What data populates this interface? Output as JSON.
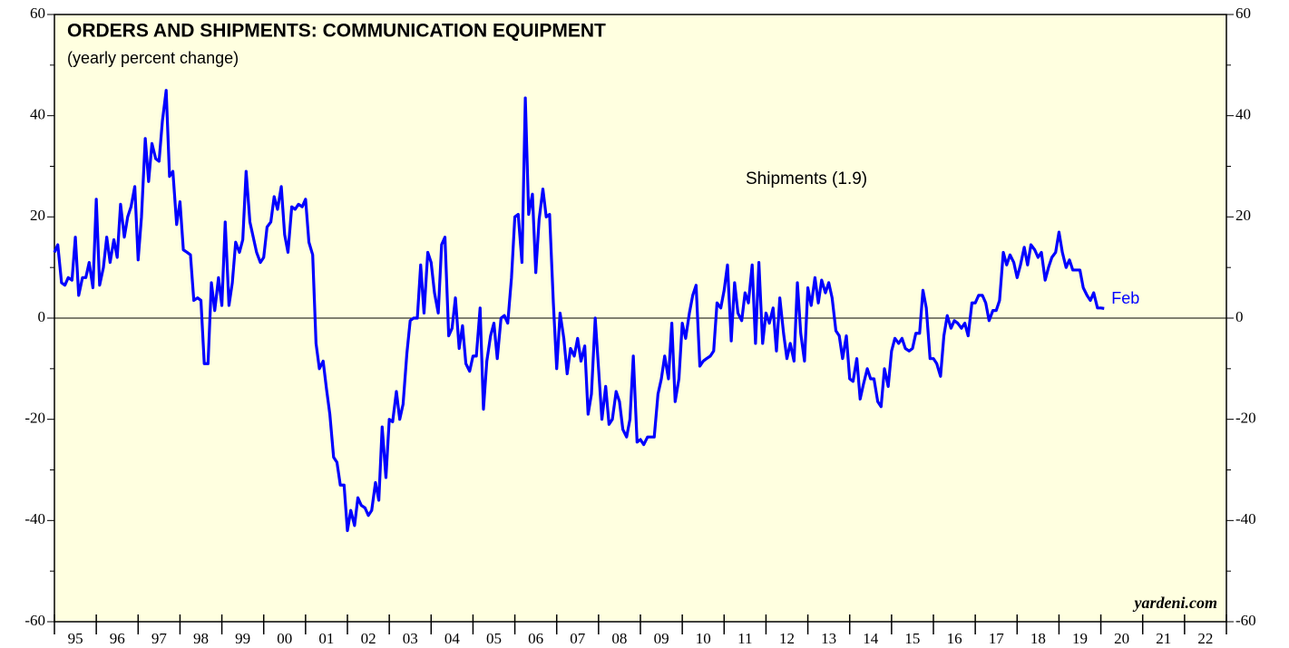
{
  "chart_data": {
    "type": "line",
    "title": "ORDERS AND SHIPMENTS: COMMUNICATION EQUIPMENT",
    "subtitle": "(yearly percent change)",
    "series_label": "Shipments (1.9)",
    "end_label": "Feb",
    "source": "yardeni.com",
    "color": "#0000ff",
    "background": "#ffffe0",
    "xlim": [
      1995,
      2023
    ],
    "xticks": [
      1995,
      1996,
      1997,
      1998,
      1999,
      2000,
      2001,
      2002,
      2003,
      2004,
      2005,
      2006,
      2007,
      2008,
      2009,
      2010,
      2011,
      2012,
      2013,
      2014,
      2015,
      2016,
      2017,
      2018,
      2019,
      2020,
      2021,
      2022,
      2023
    ],
    "year_labels": [
      "95",
      "96",
      "97",
      "98",
      "99",
      "00",
      "01",
      "02",
      "03",
      "04",
      "05",
      "06",
      "07",
      "08",
      "09",
      "10",
      "11",
      "12",
      "13",
      "14",
      "15",
      "16",
      "17",
      "18",
      "19",
      "20",
      "21",
      "22"
    ],
    "ylim": [
      -60,
      60
    ],
    "yticks": [
      -60,
      -40,
      -20,
      0,
      20,
      40,
      60
    ],
    "x": [
      1995.0,
      1995.08,
      1995.17,
      1995.25,
      1995.33,
      1995.42,
      1995.5,
      1995.58,
      1995.67,
      1995.75,
      1995.83,
      1995.92,
      1996.0,
      1996.08,
      1996.17,
      1996.25,
      1996.33,
      1996.42,
      1996.5,
      1996.58,
      1996.67,
      1996.75,
      1996.83,
      1996.92,
      1997.0,
      1997.08,
      1997.17,
      1997.25,
      1997.33,
      1997.42,
      1997.5,
      1997.58,
      1997.67,
      1997.75,
      1997.83,
      1997.92,
      1998.0,
      1998.08,
      1998.17,
      1998.25,
      1998.33,
      1998.42,
      1998.5,
      1998.58,
      1998.67,
      1998.75,
      1998.83,
      1998.92,
      1999.0,
      1999.08,
      1999.17,
      1999.25,
      1999.33,
      1999.42,
      1999.5,
      1999.58,
      1999.67,
      1999.75,
      1999.83,
      1999.92,
      2000.0,
      2000.08,
      2000.17,
      2000.25,
      2000.33,
      2000.42,
      2000.5,
      2000.58,
      2000.67,
      2000.75,
      2000.83,
      2000.92,
      2001.0,
      2001.08,
      2001.17,
      2001.25,
      2001.33,
      2001.42,
      2001.5,
      2001.58,
      2001.67,
      2001.75,
      2001.83,
      2001.92,
      2002.0,
      2002.08,
      2002.17,
      2002.25,
      2002.33,
      2002.42,
      2002.5,
      2002.58,
      2002.67,
      2002.75,
      2002.83,
      2002.92,
      2003.0,
      2003.08,
      2003.17,
      2003.25,
      2003.33,
      2003.42,
      2003.5,
      2003.58,
      2003.67,
      2003.75,
      2003.83,
      2003.92,
      2004.0,
      2004.08,
      2004.17,
      2004.25,
      2004.33,
      2004.42,
      2004.5,
      2004.58,
      2004.67,
      2004.75,
      2004.83,
      2004.92,
      2005.0,
      2005.08,
      2005.17,
      2005.25,
      2005.33,
      2005.42,
      2005.5,
      2005.58,
      2005.67,
      2005.75,
      2005.83,
      2005.92,
      2006.0,
      2006.08,
      2006.17,
      2006.25,
      2006.33,
      2006.42,
      2006.5,
      2006.58,
      2006.67,
      2006.75,
      2006.83,
      2006.92,
      2007.0,
      2007.08,
      2007.17,
      2007.25,
      2007.33,
      2007.42,
      2007.5,
      2007.58,
      2007.67,
      2007.75,
      2007.83,
      2007.92,
      2008.0,
      2008.08,
      2008.17,
      2008.25,
      2008.33,
      2008.42,
      2008.5,
      2008.58,
      2008.67,
      2008.75,
      2008.83,
      2008.92,
      2009.0,
      2009.08,
      2009.17,
      2009.25,
      2009.33,
      2009.42,
      2009.5,
      2009.58,
      2009.67,
      2009.75,
      2009.83,
      2009.92,
      2010.0,
      2010.08,
      2010.17,
      2010.25,
      2010.33,
      2010.42,
      2010.5,
      2010.58,
      2010.67,
      2010.75,
      2010.83,
      2010.92,
      2011.0,
      2011.08,
      2011.17,
      2011.25,
      2011.33,
      2011.42,
      2011.5,
      2011.58,
      2011.67,
      2011.75,
      2011.83,
      2011.92,
      2012.0,
      2012.08,
      2012.17,
      2012.25,
      2012.33,
      2012.42,
      2012.5,
      2012.58,
      2012.67,
      2012.75,
      2012.83,
      2012.92,
      2013.0,
      2013.08,
      2013.17,
      2013.25,
      2013.33,
      2013.42,
      2013.5,
      2013.58,
      2013.67,
      2013.75,
      2013.83,
      2013.92,
      2014.0,
      2014.08,
      2014.17,
      2014.25,
      2014.33,
      2014.42,
      2014.5,
      2014.58,
      2014.67,
      2014.75,
      2014.83,
      2014.92,
      2015.0,
      2015.08,
      2015.17,
      2015.25,
      2015.33,
      2015.42,
      2015.5,
      2015.58,
      2015.67,
      2015.75,
      2015.83,
      2015.92,
      2016.0,
      2016.08,
      2016.17,
      2016.25,
      2016.33,
      2016.42,
      2016.5,
      2016.58,
      2016.67,
      2016.75,
      2016.83,
      2016.92,
      2017.0,
      2017.08,
      2017.17,
      2017.25,
      2017.33,
      2017.42,
      2017.5,
      2017.58,
      2017.67,
      2017.75,
      2017.83,
      2017.92,
      2018.0,
      2018.08,
      2018.17,
      2018.25,
      2018.33,
      2018.42,
      2018.5,
      2018.58,
      2018.67,
      2018.75,
      2018.83,
      2018.92,
      2019.0,
      2019.08,
      2019.17,
      2019.25,
      2019.33,
      2019.42,
      2019.5,
      2019.58,
      2019.67,
      2019.75,
      2019.83,
      2019.92,
      2020.0,
      2020.08
    ],
    "values": [
      13,
      14.5,
      7,
      6.5,
      8,
      7.5,
      16,
      4.5,
      8,
      8,
      11,
      6,
      23.5,
      6.5,
      10,
      16,
      11,
      15.5,
      12,
      22.5,
      16,
      20,
      22,
      26,
      11.5,
      20,
      35.5,
      27,
      34.5,
      31.5,
      31,
      39,
      45,
      28,
      29,
      18.5,
      23,
      13.5,
      13,
      12.5,
      3.5,
      4,
      3.5,
      -9,
      -9,
      7,
      1.5,
      8,
      2.5,
      19,
      2.5,
      7,
      15,
      13,
      15.5,
      29,
      19,
      16,
      13,
      11,
      12,
      18,
      19,
      24,
      21.5,
      26,
      16.5,
      13,
      22,
      21.5,
      22.5,
      22,
      23.5,
      15,
      12.5,
      -5,
      -10,
      -8.5,
      -14,
      -19,
      -27.5,
      -28.5,
      -33,
      -33,
      -42,
      -38,
      -41,
      -35.5,
      -37,
      -37.5,
      -39,
      -38,
      -32.5,
      -36,
      -21.5,
      -31.5,
      -20,
      -20.5,
      -14.5,
      -20,
      -17,
      -7,
      -0.5,
      0,
      0,
      10.5,
      1,
      13,
      11,
      5,
      1,
      14.5,
      16,
      -3.5,
      -2,
      4,
      -6,
      -1.5,
      -9,
      -10.5,
      -7.5,
      -7.5,
      2,
      -18,
      -8.5,
      -3.5,
      -1,
      -8,
      0,
      0.5,
      -1,
      8,
      20,
      20.5,
      11,
      43.5,
      20.5,
      24.5,
      9,
      19.5,
      25.5,
      20,
      20.5,
      3,
      -10,
      1,
      -4,
      -11,
      -6,
      -7.5,
      -4,
      -8.5,
      -5.5,
      -19,
      -15,
      0,
      -10,
      -20,
      -13.5,
      -21,
      -20,
      -14.5,
      -16.5,
      -22,
      -23.5,
      -20,
      -7.5,
      -24.5,
      -24,
      -25,
      -23.5,
      -23.5,
      -23.5,
      -15,
      -12,
      -7.5,
      -12,
      -1,
      -16.5,
      -12,
      -1,
      -4,
      1,
      4.5,
      6.5,
      -9.5,
      -8.5,
      -8,
      -7.5,
      -6.5,
      3,
      2,
      5.5,
      10.5,
      -4.5,
      7,
      1,
      -0.5,
      5,
      3,
      10.5,
      -5,
      11,
      -5,
      1,
      -1,
      2,
      -6.5,
      4,
      -3,
      -8,
      -5,
      -8.5,
      7,
      -3,
      -8.5,
      6,
      2.5,
      8,
      3,
      7.5,
      5,
      7,
      4,
      -2.5,
      -3.5,
      -8,
      -3.5,
      -12,
      -12.5,
      -8,
      -16,
      -13,
      -10,
      -12,
      -12,
      -16.5,
      -17.5,
      -10,
      -13.5,
      -6.5,
      -4,
      -5,
      -4,
      -6,
      -6.5,
      -6,
      -3,
      -3,
      5.5,
      2,
      -8,
      -8,
      -9,
      -11.5,
      -3.5,
      0.5,
      -2,
      -0.5,
      -1,
      -2,
      -1,
      -3.5,
      3,
      3,
      4.5,
      4.5,
      3,
      -0.5,
      1.5,
      1.5,
      3.5,
      13,
      10.5,
      12.5,
      11,
      8,
      10.5,
      14,
      10.5,
      14.5,
      13.5,
      12,
      13,
      7.5,
      10,
      12,
      13,
      17,
      13,
      10,
      11.5,
      9.5,
      9.5,
      9.5,
      6,
      4.5,
      3.5,
      5,
      2,
      2,
      1.9
    ]
  }
}
